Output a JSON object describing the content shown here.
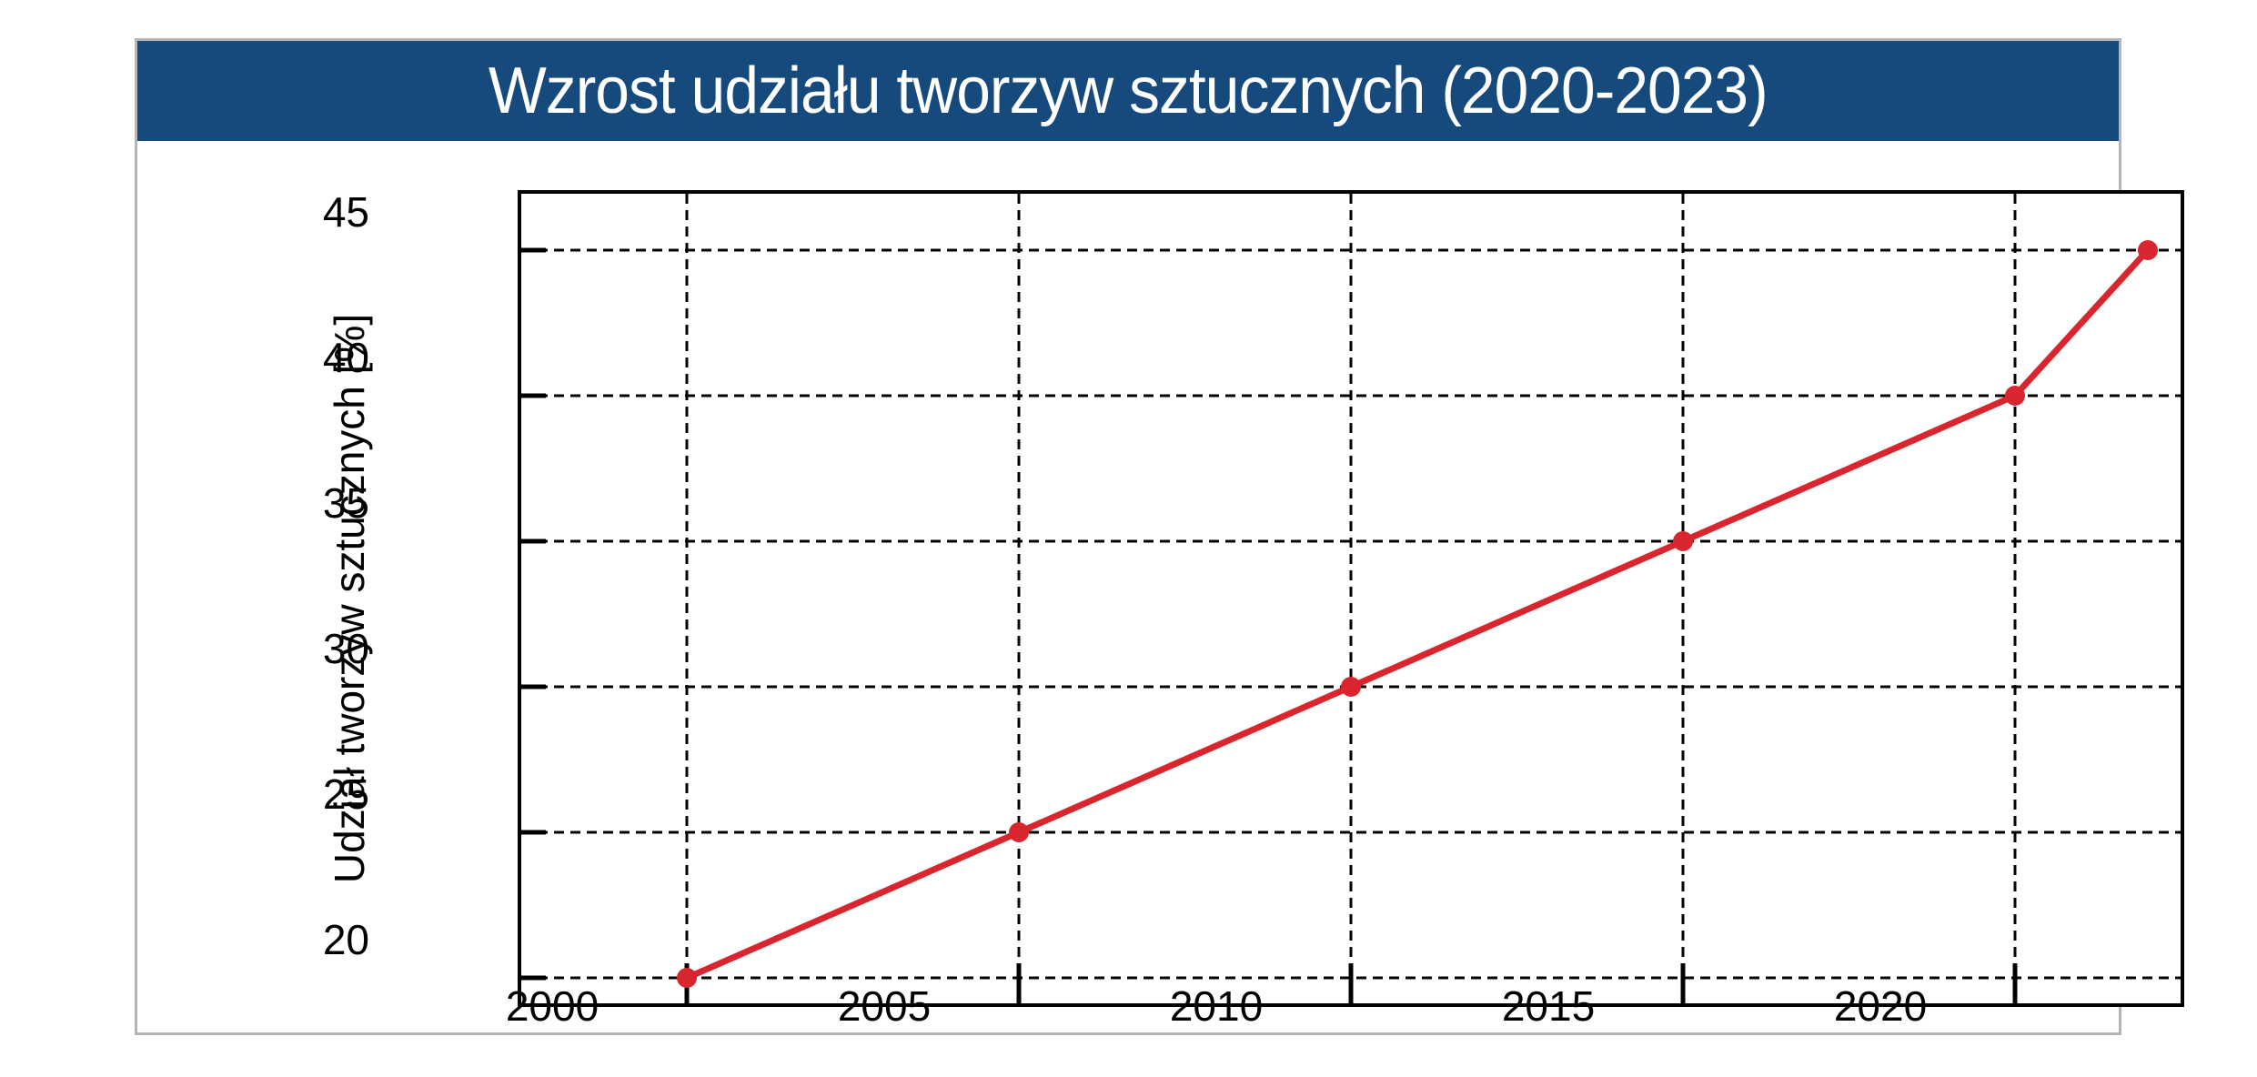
{
  "header": {
    "title": "Wzrost udziału tworzyw sztucznych (2020-2023)",
    "bg_color": "#164a7d",
    "text_color": "#ffffff"
  },
  "chart_data": {
    "type": "line",
    "title": "Wzrost udziału tworzyw sztucznych (2020-2023)",
    "x": [
      2000,
      2005,
      2010,
      2015,
      2020,
      2022
    ],
    "series": [
      {
        "name": "Udział tworzyw sztucznych [%]",
        "values": [
          20,
          25,
          30,
          35,
          40,
          45
        ]
      }
    ],
    "xlabel": "",
    "ylabel": "Udział tworzyw sztucznych [%]",
    "x_ticks": [
      "2000",
      "2005",
      "2010",
      "2015",
      "2020"
    ],
    "y_ticks": [
      "20",
      "25",
      "30",
      "35",
      "40",
      "45"
    ],
    "xlim": [
      1997.5,
      2022.5
    ],
    "ylim": [
      19.1,
      46.9
    ],
    "grid": "dashed, both axes, black",
    "legend": "none",
    "line_color": "#d9262e",
    "grid_color": "#000000",
    "frame_color": "#000000",
    "marker": "filled circle"
  }
}
